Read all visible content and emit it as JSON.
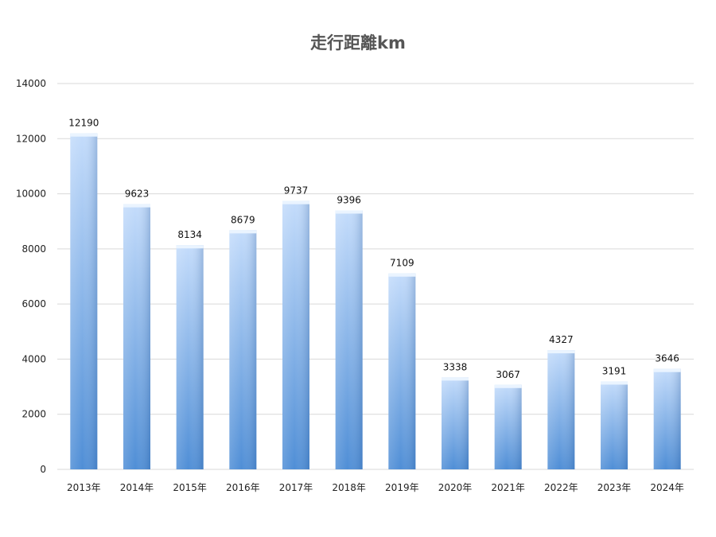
{
  "chart_data": {
    "type": "bar",
    "title": "走行距離km",
    "categories": [
      "2013年",
      "2014年",
      "2015年",
      "2016年",
      "2017年",
      "2018年",
      "2019年",
      "2020年",
      "2021年",
      "2022年",
      "2023年",
      "2024年"
    ],
    "values": [
      12190,
      9623,
      8134,
      8679,
      9737,
      9396,
      7109,
      3338,
      3067,
      4327,
      3191,
      3646
    ],
    "ylim": [
      0,
      14000
    ],
    "yticks": [
      0,
      2000,
      4000,
      6000,
      8000,
      10000,
      12000,
      14000
    ],
    "grid": true,
    "legend": "none",
    "bar_color_light": "#c4dcfb",
    "bar_color_dark": "#4f8ed6",
    "gridline_color": "#d9d9d9"
  }
}
